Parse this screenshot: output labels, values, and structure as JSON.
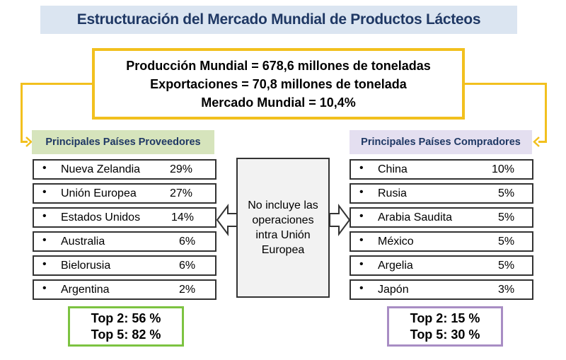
{
  "title": "Estructuración del Mercado Mundial de Productos Lácteos",
  "summary": {
    "line1": "Producción Mundial = 678,6 millones de toneladas",
    "line2": "Exportaciones = 70,8 millones de tonelada",
    "line3": "Mercado Mundial = 10,4%"
  },
  "suppliers": {
    "header": "Principales Países Proveedores",
    "items": [
      {
        "name": "Nueva Zelandia",
        "pct": "29%"
      },
      {
        "name": "Unión Europea",
        "pct": "27%"
      },
      {
        "name": "Estados Unidos",
        "pct": "14%"
      },
      {
        "name": "Australia",
        "pct": "6%"
      },
      {
        "name": "Bielorusia",
        "pct": "6%"
      },
      {
        "name": "Argentina",
        "pct": "2%"
      }
    ],
    "top2": "Top 2: 56 %",
    "top5": "Top 5: 82 %"
  },
  "buyers": {
    "header": "Principales Países Compradores",
    "items": [
      {
        "name": "China",
        "pct": "10%"
      },
      {
        "name": "Rusia",
        "pct": "5%"
      },
      {
        "name": "Arabia Saudita",
        "pct": "5%"
      },
      {
        "name": "México",
        "pct": "5%"
      },
      {
        "name": "Argelia",
        "pct": "5%"
      },
      {
        "name": "Japón",
        "pct": "3%"
      }
    ],
    "top2": "Top 2: 15 %",
    "top5": "Top 5: 30 %"
  },
  "note": {
    "line1": "No incluye las",
    "line2": "operaciones",
    "line3": "intra Unión",
    "line4": "Europea"
  },
  "bullet": "•",
  "colors": {
    "title_bg": "#dbe5f1",
    "title_text": "#1f3864",
    "summary_border": "#f2c01e",
    "suppliers_header_bg": "#d6e4bc",
    "buyers_header_bg": "#e4dff0",
    "suppliers_top_border": "#7cc341",
    "buyers_top_border": "#a88dc4"
  }
}
